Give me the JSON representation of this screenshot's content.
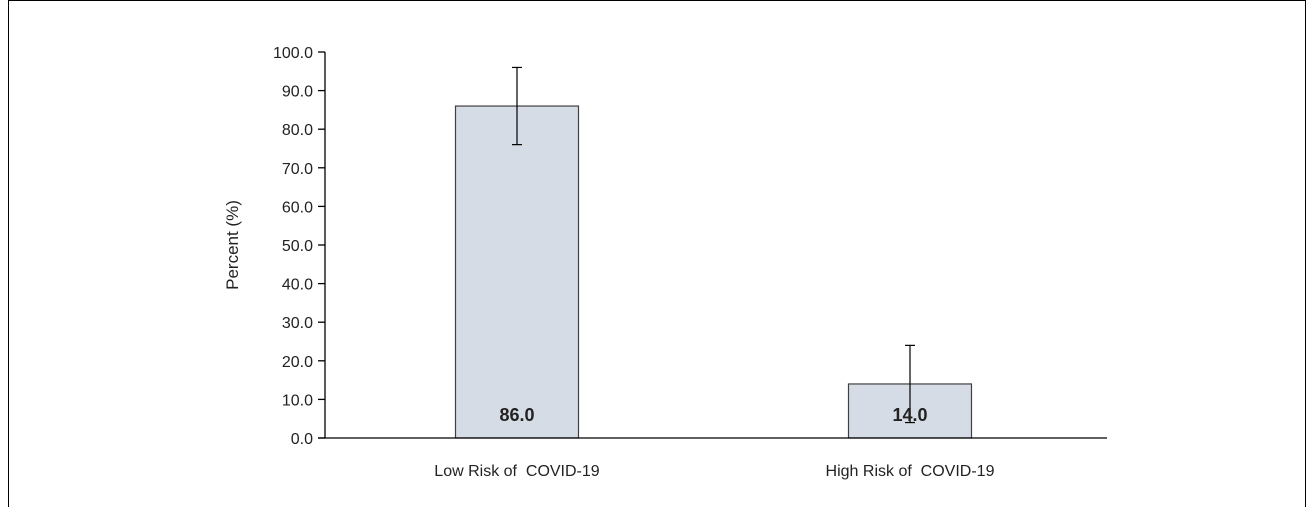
{
  "chart_data": {
    "type": "bar",
    "categories": [
      "Low Risk of  COVID-19",
      "High Risk of  COVID-19"
    ],
    "values": [
      86.0,
      14.0
    ],
    "error_bars": [
      {
        "low": 76.0,
        "high": 96.0
      },
      {
        "low": 4.0,
        "high": 24.0
      }
    ],
    "data_labels": [
      "86.0",
      "14.0"
    ],
    "ylabel": "Percent (%)",
    "xlabel": "",
    "ylim": [
      0,
      100
    ],
    "yticks": [
      "0.0",
      "10.0",
      "20.0",
      "30.0",
      "40.0",
      "50.0",
      "60.0",
      "70.0",
      "80.0",
      "90.0",
      "100.0"
    ],
    "grid": false,
    "colors": {
      "bar_fill": "#d6dce5",
      "bar_stroke": "#404040",
      "axis": "#000000"
    }
  }
}
